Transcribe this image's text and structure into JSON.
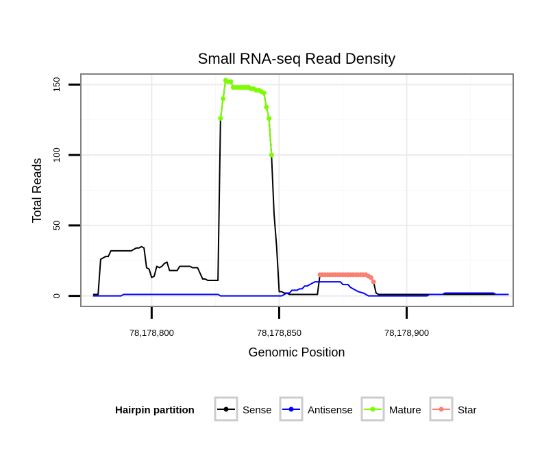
{
  "chart_data": {
    "type": "line",
    "title": "Small RNA-seq Read Density",
    "xlabel": "Genomic Position",
    "ylabel": "Total Reads",
    "xlim": [
      78178772.5,
      78178941.5
    ],
    "ylim": [
      -7,
      157
    ],
    "x_ticks": [
      78178800,
      78178850,
      78178900
    ],
    "x_tick_labels": [
      "78,178,800",
      "78,178,850",
      "78,178,900"
    ],
    "y_ticks": [
      0,
      50,
      100,
      150
    ],
    "y_tick_labels": [
      "0",
      "50",
      "100",
      "150"
    ],
    "legend": {
      "title": "Hairpin partition",
      "position": "bottom",
      "entries": [
        {
          "name": "Sense",
          "color": "#000000"
        },
        {
          "name": "Antisense",
          "color": "#0000ff"
        },
        {
          "name": "Mature",
          "color": "#7cfc00"
        },
        {
          "name": "Star",
          "color": "#fa8072"
        }
      ]
    },
    "series": [
      {
        "name": "Sense",
        "color": "#000000",
        "points": [
          [
            78178777,
            1
          ],
          [
            78178779,
            1
          ],
          [
            78178780,
            26
          ],
          [
            78178781,
            27
          ],
          [
            78178782,
            28
          ],
          [
            78178783,
            28
          ],
          [
            78178784,
            32
          ],
          [
            78178792,
            32
          ],
          [
            78178793,
            33
          ],
          [
            78178794,
            34
          ],
          [
            78178795,
            34
          ],
          [
            78178796,
            35
          ],
          [
            78178797,
            34
          ],
          [
            78178798,
            20
          ],
          [
            78178799,
            19
          ],
          [
            78178800,
            13
          ],
          [
            78178801,
            14
          ],
          [
            78178802,
            21
          ],
          [
            78178803,
            20
          ],
          [
            78178804,
            21
          ],
          [
            78178805,
            23
          ],
          [
            78178806,
            24
          ],
          [
            78178807,
            18
          ],
          [
            78178810,
            18
          ],
          [
            78178811,
            21
          ],
          [
            78178815,
            21
          ],
          [
            78178816,
            20
          ],
          [
            78178818,
            20
          ],
          [
            78178819,
            16
          ],
          [
            78178820,
            12
          ],
          [
            78178821,
            12
          ],
          [
            78178822,
            11
          ],
          [
            78178826,
            11
          ],
          [
            78178827,
            126
          ],
          [
            78178828,
            140
          ],
          [
            78178829,
            153
          ],
          [
            78178830,
            152
          ],
          [
            78178831,
            152
          ],
          [
            78178832,
            148
          ],
          [
            78178838,
            148
          ],
          [
            78178839,
            147
          ],
          [
            78178841,
            146
          ],
          [
            78178843,
            145
          ],
          [
            78178844,
            144
          ],
          [
            78178845,
            134
          ],
          [
            78178846,
            126
          ],
          [
            78178847,
            100
          ],
          [
            78178848,
            58
          ],
          [
            78178849,
            35
          ],
          [
            78178850,
            3
          ],
          [
            78178851,
            3
          ],
          [
            78178852,
            2
          ],
          [
            78178853,
            2
          ],
          [
            78178854,
            1
          ],
          [
            78178865,
            1
          ],
          [
            78178866,
            15
          ],
          [
            78178884,
            15
          ],
          [
            78178885,
            14
          ],
          [
            78178886,
            13
          ],
          [
            78178887,
            10
          ],
          [
            78178888,
            2
          ],
          [
            78178889,
            1
          ],
          [
            78178940,
            1
          ]
        ]
      },
      {
        "name": "Antisense",
        "color": "#0000ff",
        "points": [
          [
            78178777,
            0
          ],
          [
            78178788,
            0
          ],
          [
            78178789,
            1
          ],
          [
            78178826,
            1
          ],
          [
            78178827,
            0
          ],
          [
            78178851,
            0
          ],
          [
            78178852,
            1
          ],
          [
            78178853,
            2
          ],
          [
            78178854,
            2
          ],
          [
            78178855,
            4
          ],
          [
            78178857,
            4
          ],
          [
            78178858,
            5
          ],
          [
            78178859,
            5
          ],
          [
            78178860,
            7
          ],
          [
            78178861,
            7
          ],
          [
            78178862,
            8
          ],
          [
            78178863,
            9
          ],
          [
            78178864,
            10
          ],
          [
            78178874,
            10
          ],
          [
            78178875,
            8
          ],
          [
            78178877,
            8
          ],
          [
            78178878,
            6
          ],
          [
            78178879,
            5
          ],
          [
            78178880,
            4
          ],
          [
            78178881,
            3
          ],
          [
            78178883,
            2
          ],
          [
            78178884,
            1
          ],
          [
            78178885,
            0
          ],
          [
            78178889,
            0
          ],
          [
            78178908,
            0
          ],
          [
            78178909,
            1
          ],
          [
            78178914,
            1
          ],
          [
            78178915,
            2
          ],
          [
            78178934,
            2
          ],
          [
            78178935,
            1
          ],
          [
            78178940,
            1
          ]
        ]
      },
      {
        "name": "Mature",
        "color": "#7cfc00",
        "points": [
          [
            78178827,
            126
          ],
          [
            78178828,
            140
          ],
          [
            78178829,
            153
          ],
          [
            78178830,
            152
          ],
          [
            78178831,
            152
          ],
          [
            78178832,
            148
          ],
          [
            78178833,
            148
          ],
          [
            78178834,
            148
          ],
          [
            78178835,
            148
          ],
          [
            78178836,
            148
          ],
          [
            78178837,
            148
          ],
          [
            78178838,
            148
          ],
          [
            78178839,
            147
          ],
          [
            78178840,
            147
          ],
          [
            78178841,
            146
          ],
          [
            78178842,
            146
          ],
          [
            78178843,
            145
          ],
          [
            78178844,
            144
          ],
          [
            78178845,
            134
          ],
          [
            78178846,
            126
          ],
          [
            78178847,
            100
          ]
        ]
      },
      {
        "name": "Star",
        "color": "#fa8072",
        "points": [
          [
            78178866,
            15
          ],
          [
            78178867,
            15
          ],
          [
            78178868,
            15
          ],
          [
            78178869,
            15
          ],
          [
            78178870,
            15
          ],
          [
            78178871,
            15
          ],
          [
            78178872,
            15
          ],
          [
            78178873,
            15
          ],
          [
            78178874,
            15
          ],
          [
            78178875,
            15
          ],
          [
            78178876,
            15
          ],
          [
            78178877,
            15
          ],
          [
            78178878,
            15
          ],
          [
            78178879,
            15
          ],
          [
            78178880,
            15
          ],
          [
            78178881,
            15
          ],
          [
            78178882,
            15
          ],
          [
            78178883,
            15
          ],
          [
            78178884,
            15
          ],
          [
            78178885,
            14
          ],
          [
            78178886,
            13
          ],
          [
            78178887,
            10
          ]
        ]
      }
    ]
  }
}
